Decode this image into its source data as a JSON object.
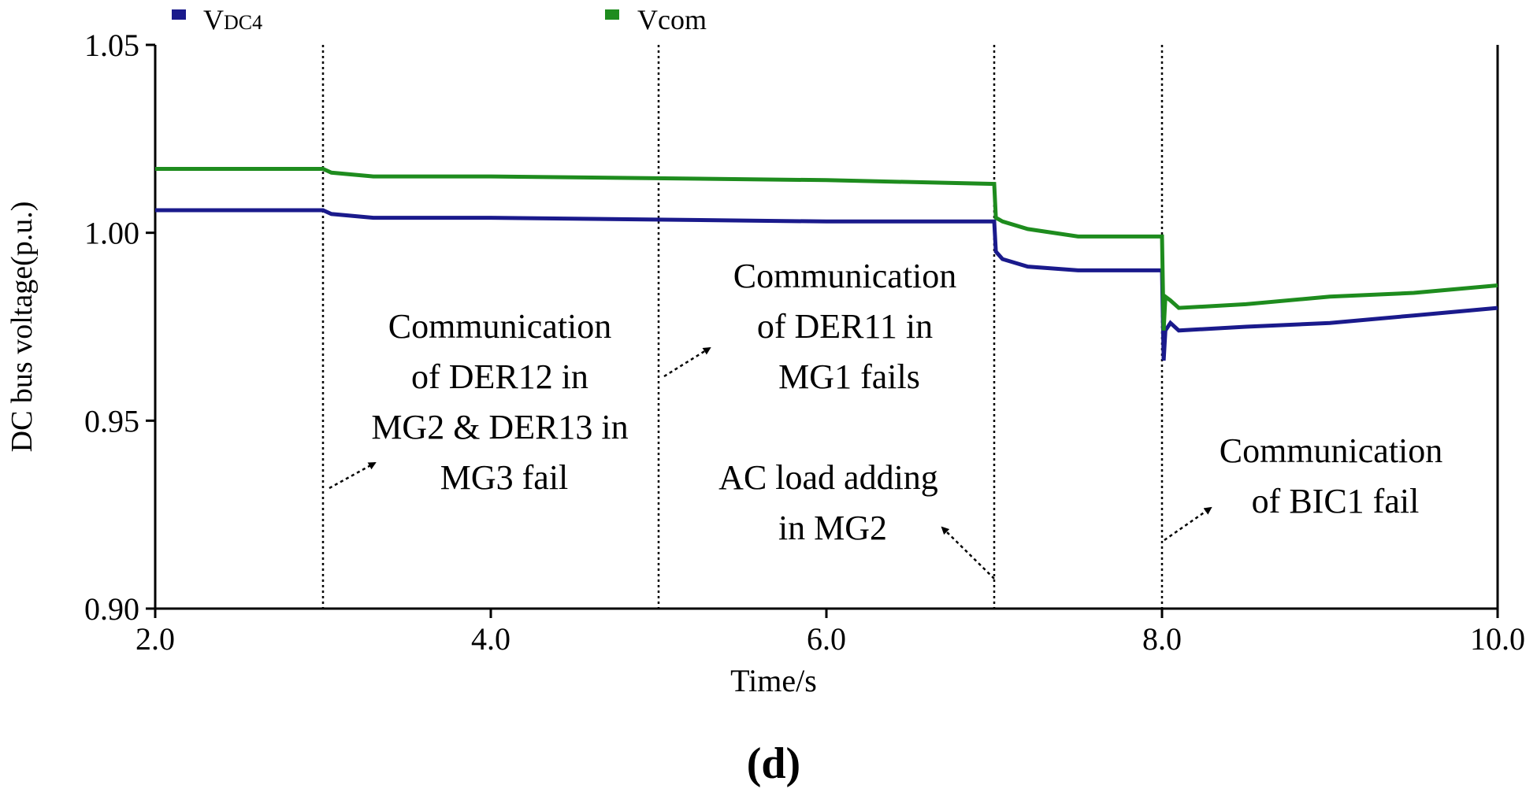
{
  "chart_data": {
    "type": "line",
    "title": "",
    "xlabel": "Time/s",
    "ylabel": "DC bus voltage(p.u.)",
    "xlim": [
      2.0,
      10.0
    ],
    "ylim": [
      0.9,
      1.05
    ],
    "xticks": [
      2.0,
      4.0,
      6.0,
      8.0,
      10.0
    ],
    "xtick_labels": [
      "2.0",
      "4.0",
      "6.0",
      "8.0",
      "10.0"
    ],
    "yticks": [
      0.9,
      0.95,
      1.0,
      1.05
    ],
    "ytick_labels": [
      "0.90",
      "0.95",
      "1.00",
      "1.05"
    ],
    "grid": false,
    "legend_position": "top",
    "series": [
      {
        "name": "VDC4",
        "name_main": "V",
        "name_sub": "DC4",
        "color": "#1a1a8c",
        "x": [
          2.0,
          3.0,
          3.05,
          3.3,
          4.0,
          6.0,
          7.0,
          7.01,
          7.05,
          7.2,
          7.5,
          8.0,
          8.01,
          8.02,
          8.05,
          8.1,
          8.5,
          9.0,
          9.5,
          10.0
        ],
        "y": [
          1.006,
          1.006,
          1.005,
          1.004,
          1.004,
          1.003,
          1.003,
          0.995,
          0.993,
          0.991,
          0.99,
          0.99,
          0.966,
          0.974,
          0.976,
          0.974,
          0.975,
          0.976,
          0.978,
          0.98
        ]
      },
      {
        "name": "Vcom",
        "name_main": "Vcom",
        "name_sub": "",
        "color": "#1e8c1e",
        "x": [
          2.0,
          3.0,
          3.05,
          3.3,
          4.0,
          6.0,
          7.0,
          7.01,
          7.05,
          7.2,
          7.5,
          8.0,
          8.01,
          8.02,
          8.05,
          8.1,
          8.5,
          9.0,
          9.5,
          10.0
        ],
        "y": [
          1.017,
          1.017,
          1.016,
          1.015,
          1.015,
          1.014,
          1.013,
          1.004,
          1.003,
          1.001,
          0.999,
          0.999,
          0.974,
          0.983,
          0.982,
          0.98,
          0.981,
          0.983,
          0.984,
          0.986
        ]
      }
    ],
    "event_lines": [
      3.0,
      5.0,
      7.0,
      8.0
    ],
    "annotations": [
      {
        "lines": [
          "Communication",
          "of DER12 in",
          "MG2 & DER13 in",
          "MG3 fail"
        ]
      },
      {
        "lines": [
          "Communication",
          "of DER11 in",
          "MG1 fails"
        ]
      },
      {
        "lines": [
          "AC load adding",
          "in MG2"
        ]
      },
      {
        "lines": [
          "Communication",
          "of BIC1 fail"
        ]
      }
    ],
    "caption": "(d)"
  }
}
